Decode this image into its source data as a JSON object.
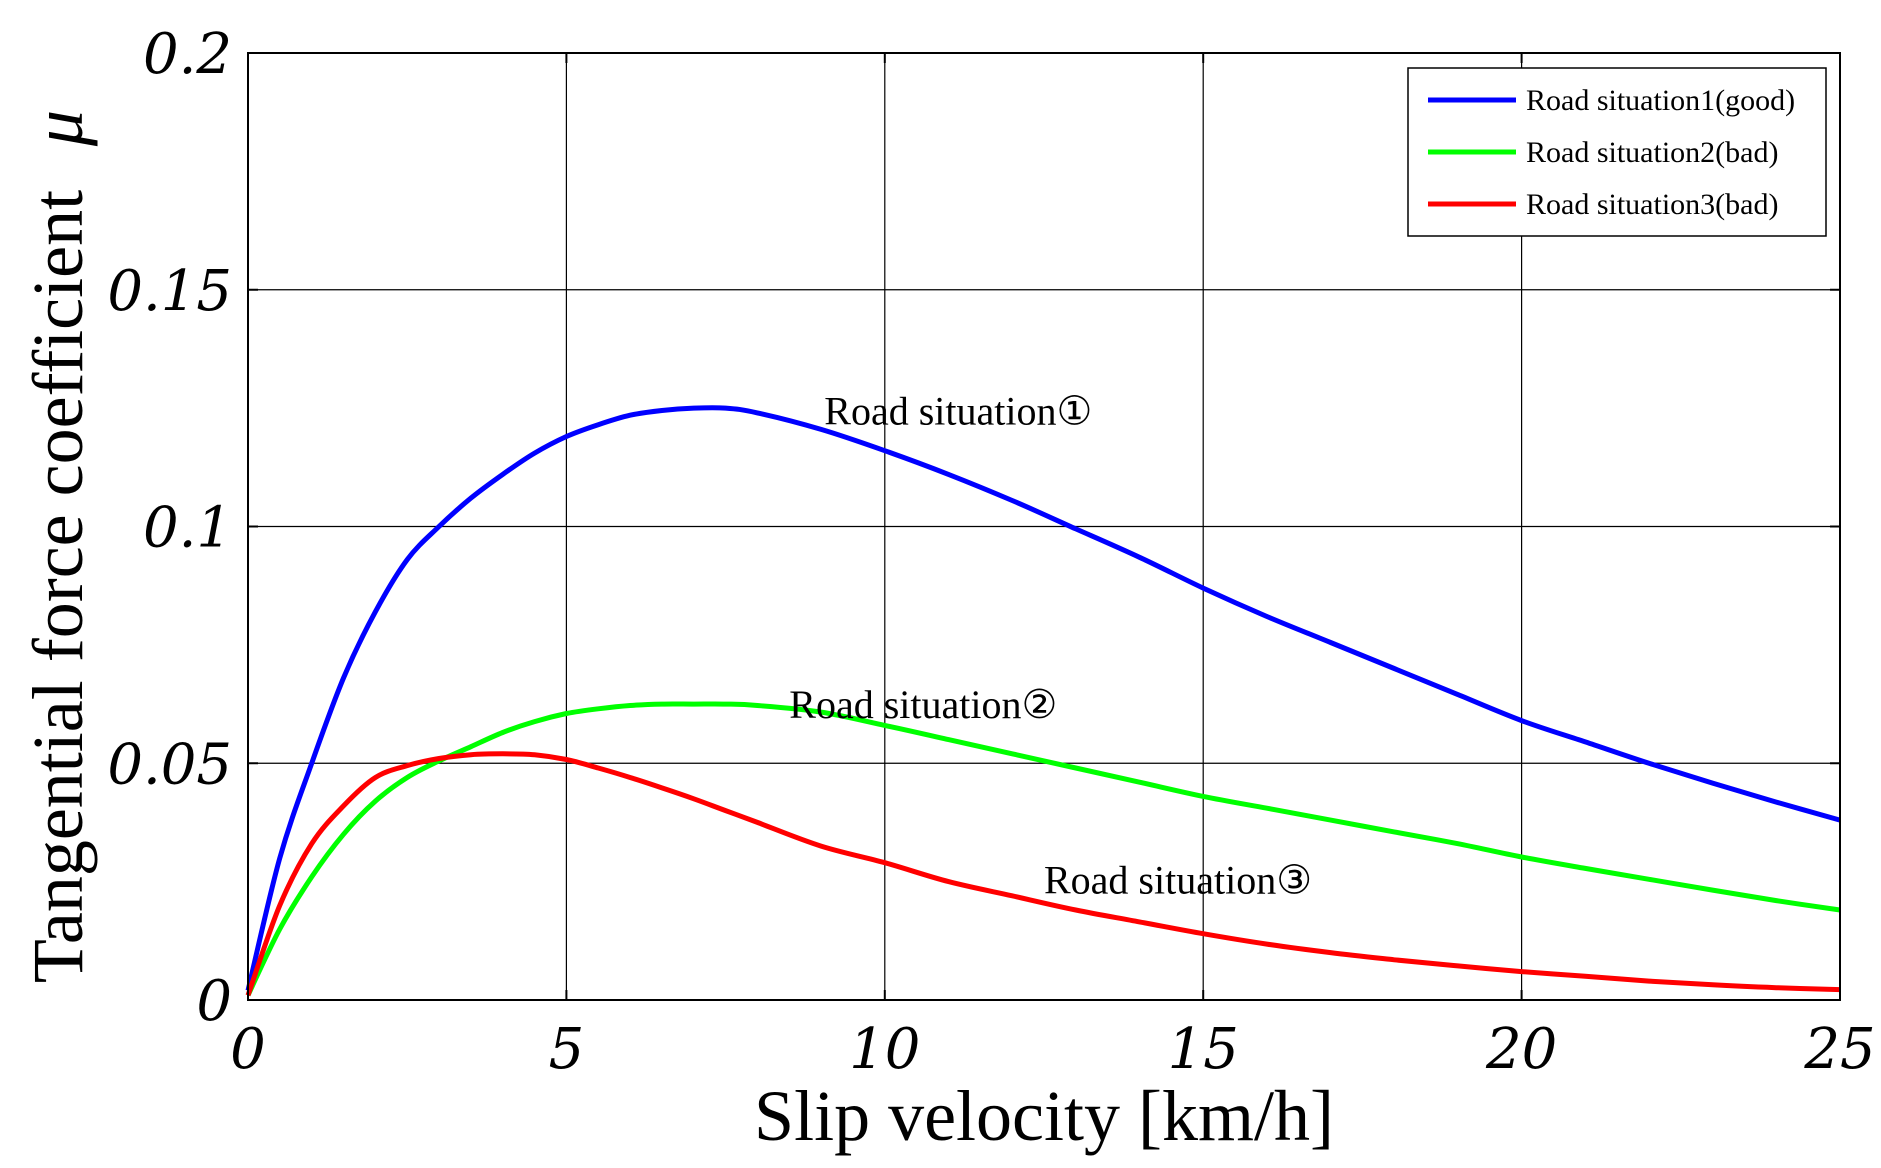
{
  "chart_data": {
    "type": "line",
    "title": "",
    "xlabel": "Slip velocity [km/h]",
    "ylabel": "Tangential force coefficient",
    "ylabel_symbol": "μ",
    "xlim": [
      0,
      25
    ],
    "ylim": [
      0,
      0.2
    ],
    "xticks": [
      0,
      5,
      10,
      15,
      20,
      25
    ],
    "xtick_labels": [
      "0",
      "5",
      "10",
      "15",
      "20",
      "25"
    ],
    "yticks": [
      0,
      0.05,
      0.1,
      0.15,
      0.2
    ],
    "ytick_labels": [
      "0",
      "0.05",
      "0.1",
      "0.15",
      "0.2"
    ],
    "grid": true,
    "legend_position": "top-right",
    "series": [
      {
        "name": "Road situation1(good)",
        "color": "#0000ff",
        "x": [
          0,
          0.5,
          1,
          1.5,
          2,
          2.5,
          3,
          3.5,
          4,
          4.5,
          5,
          5.5,
          6,
          6.5,
          7,
          7.5,
          8,
          9,
          10,
          11,
          12,
          13,
          14,
          15,
          16,
          17,
          18,
          19,
          20,
          21,
          22,
          23,
          24,
          25
        ],
        "values": [
          0.002,
          0.03,
          0.05,
          0.068,
          0.082,
          0.093,
          0.1,
          0.106,
          0.111,
          0.1155,
          0.119,
          0.1215,
          0.1235,
          0.1245,
          0.125,
          0.125,
          0.124,
          0.1205,
          0.116,
          0.111,
          0.1055,
          0.0995,
          0.0935,
          0.087,
          0.081,
          0.0755,
          0.07,
          0.0645,
          0.059,
          0.0545,
          0.05,
          0.0458,
          0.0418,
          0.038
        ]
      },
      {
        "name": "Road situation2(bad)",
        "color": "#00ff00",
        "x": [
          0,
          0.5,
          1,
          1.5,
          2,
          2.5,
          3,
          3.5,
          4,
          4.5,
          5,
          5.5,
          6,
          6.5,
          7,
          7.5,
          8,
          9,
          10,
          11,
          12,
          13,
          14,
          15,
          16,
          17,
          18,
          19,
          20,
          21,
          22,
          23,
          24,
          25
        ],
        "values": [
          0.001,
          0.015,
          0.026,
          0.035,
          0.042,
          0.047,
          0.0505,
          0.0535,
          0.0565,
          0.0588,
          0.0605,
          0.0615,
          0.0622,
          0.0625,
          0.0625,
          0.0625,
          0.0622,
          0.0608,
          0.058,
          0.055,
          0.052,
          0.049,
          0.046,
          0.043,
          0.0405,
          0.038,
          0.0355,
          0.033,
          0.0302,
          0.0278,
          0.0255,
          0.0232,
          0.021,
          0.019
        ]
      },
      {
        "name": "Road situation3(bad)",
        "color": "#ff0000",
        "x": [
          0,
          0.5,
          1,
          1.5,
          2,
          2.5,
          3,
          3.5,
          4,
          4.5,
          5,
          5.5,
          6,
          6.5,
          7,
          7.5,
          8,
          9,
          10,
          11,
          12,
          13,
          14,
          15,
          16,
          17,
          18,
          19,
          20,
          21,
          22,
          23,
          24,
          25
        ],
        "values": [
          0.001,
          0.02,
          0.033,
          0.041,
          0.047,
          0.0495,
          0.051,
          0.0518,
          0.052,
          0.0518,
          0.0508,
          0.049,
          0.047,
          0.0448,
          0.0425,
          0.04,
          0.0375,
          0.0325,
          0.029,
          0.025,
          0.022,
          0.019,
          0.0165,
          0.014,
          0.0118,
          0.01,
          0.0085,
          0.0072,
          0.006,
          0.005,
          0.004,
          0.0032,
          0.0026,
          0.0022
        ]
      }
    ],
    "annotations": [
      {
        "text": "Road situation①",
        "x": 9.05,
        "y": 0.1245
      },
      {
        "text": "Road situation②",
        "x": 8.5,
        "y": 0.0625
      },
      {
        "text": "Road situation③",
        "x": 12.5,
        "y": 0.0255
      }
    ]
  }
}
